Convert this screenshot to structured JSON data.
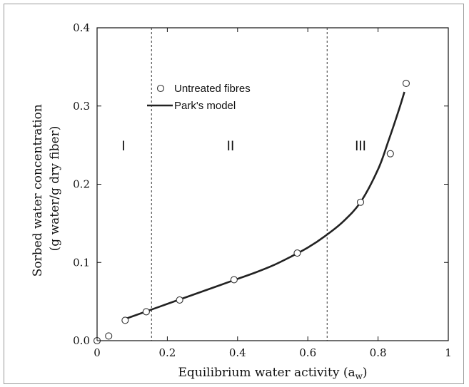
{
  "chart_data": {
    "type": "scatter",
    "title": "",
    "xlabel": "Equilibrium water activity (a",
    "xlabel_sub": "w",
    "xlabel_close": ")",
    "ylabel_line1": "Sorbed water concentration",
    "ylabel_line2": "(g water/g dry fiber)",
    "xlim": [
      0,
      1
    ],
    "ylim": [
      0,
      0.4
    ],
    "x_ticks": [
      0,
      0.2,
      0.4,
      0.6,
      0.8,
      1
    ],
    "x_tick_labels": [
      "0",
      "0.2",
      "0.4",
      "0.6",
      "0.8",
      "1"
    ],
    "y_ticks": [
      0,
      0.1,
      0.2,
      0.3,
      0.4
    ],
    "y_tick_labels": [
      "0.0",
      "0.1",
      "0.2",
      "0.3",
      "0.4"
    ],
    "grid": false,
    "legend_position": "top-left",
    "series": [
      {
        "name": "Untreated fibres",
        "kind": "markers",
        "marker": "open-circle",
        "x": [
          0.0,
          0.033,
          0.08,
          0.14,
          0.235,
          0.39,
          0.57,
          0.75,
          0.835,
          0.88
        ],
        "y": [
          0.0,
          0.006,
          0.026,
          0.037,
          0.052,
          0.078,
          0.112,
          0.177,
          0.239,
          0.329
        ]
      },
      {
        "name": "Park's model",
        "kind": "line",
        "x": [
          0.075,
          0.1,
          0.15,
          0.2,
          0.25,
          0.3,
          0.35,
          0.4,
          0.45,
          0.5,
          0.55,
          0.6,
          0.65,
          0.7,
          0.75,
          0.8,
          0.83,
          0.86,
          0.875
        ],
        "y": [
          0.027,
          0.031,
          0.039,
          0.047,
          0.055,
          0.063,
          0.071,
          0.079,
          0.087,
          0.096,
          0.107,
          0.119,
          0.134,
          0.152,
          0.177,
          0.219,
          0.256,
          0.296,
          0.318
        ]
      }
    ],
    "vertical_lines": [
      0.155,
      0.655
    ],
    "regions": [
      {
        "label": "I",
        "x": 0.075
      },
      {
        "label": "II",
        "x": 0.38
      },
      {
        "label": "III",
        "x": 0.75
      }
    ],
    "colors": {
      "line": "#222222",
      "marker_edge": "#333333",
      "axis": "#111111",
      "guide": "#333333"
    }
  }
}
